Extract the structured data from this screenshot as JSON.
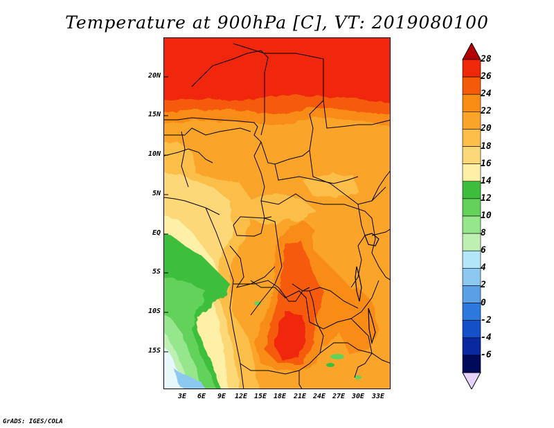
{
  "title": "Temperature at 900hPa [C], VT: 2019080100",
  "footer": "GrADS: IGES/COLA",
  "map": {
    "variable": "Temperature",
    "level": "900hPa",
    "units": "C",
    "valid_time": "2019080100",
    "lat_labels": [
      "20N",
      "15N",
      "10N",
      "5N",
      "EQ",
      "5S",
      "10S",
      "15S"
    ],
    "lon_labels": [
      "3E",
      "6E",
      "9E",
      "12E",
      "15E",
      "18E",
      "21E",
      "24E",
      "27E",
      "30E",
      "33E"
    ]
  },
  "colorbar": {
    "labels": [
      "28",
      "26",
      "24",
      "22",
      "20",
      "18",
      "16",
      "14",
      "12",
      "10",
      "8",
      "6",
      "4",
      "2",
      "0",
      "-2",
      "-4",
      "-6"
    ],
    "colors": [
      "#f0280a",
      "#f55a0a",
      "#f98c12",
      "#faa52a",
      "#fbbe48",
      "#fdd878",
      "#fff0a8",
      "#3cbe3c",
      "#64d25a",
      "#96e68c",
      "#bef0b4",
      "#b4e6fa",
      "#8cc8f0",
      "#5aa0e6",
      "#2d78dc",
      "#1450c8",
      "#0a28a0",
      "#000a5a"
    ],
    "top_color": "#b40000",
    "bottom_color": "#e6d2fa"
  }
}
